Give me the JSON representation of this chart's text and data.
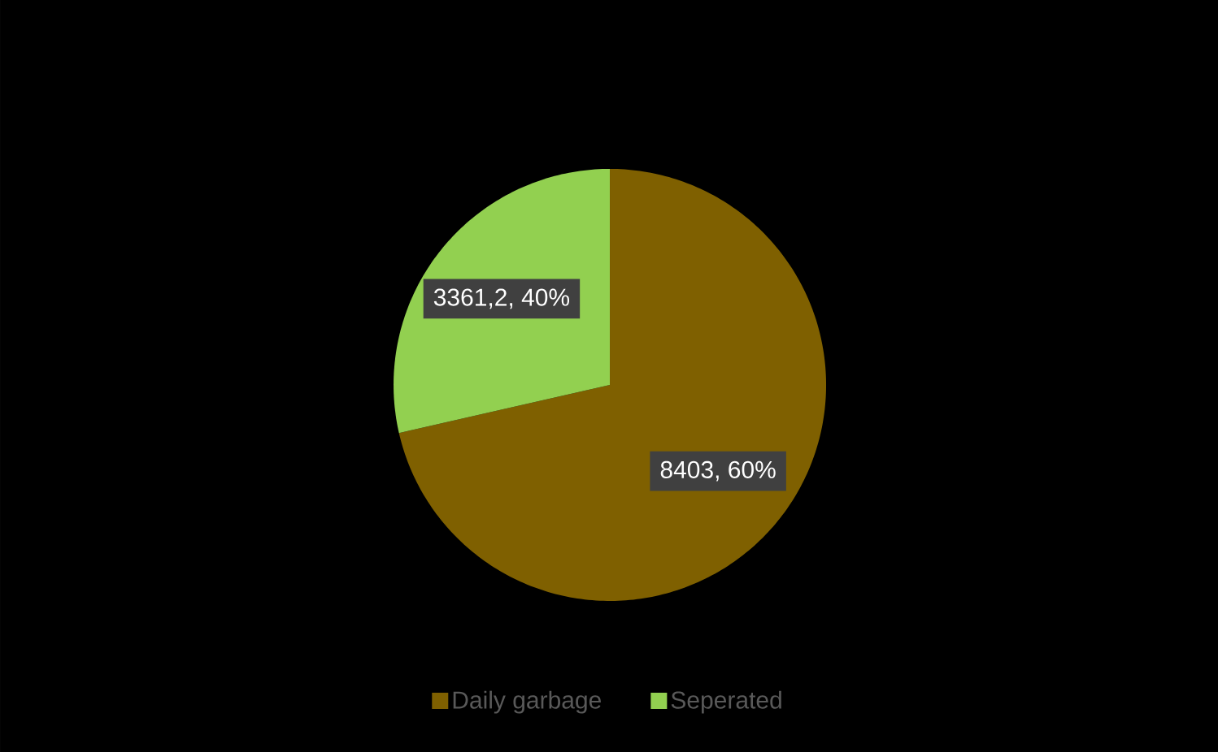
{
  "chart_data": {
    "type": "pie",
    "categories": [
      "Daily garbage",
      "Seperated"
    ],
    "values": [
      8403,
      3361.2
    ],
    "colors": [
      "#7f6000",
      "#92d050"
    ],
    "value_labels": [
      "8403, 60%",
      "3361,2, 40%"
    ],
    "legend": "bottom"
  }
}
